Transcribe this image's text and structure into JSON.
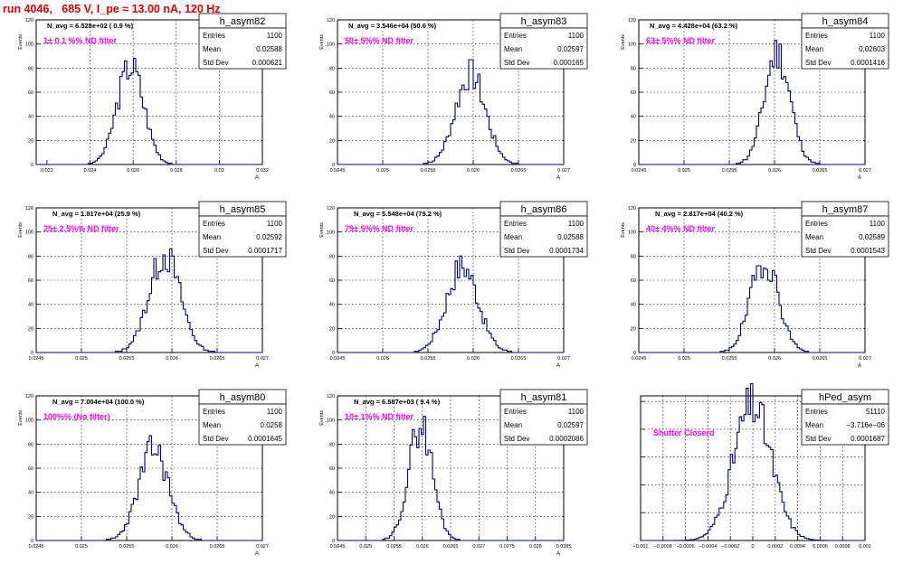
{
  "run_title": "run 4046,   685 V, I_pe ≈ 13.00 nA, 120 Hz",
  "colors": {
    "histogram": "#000080",
    "annotation": "#ff00ff",
    "title_text": "#e00000",
    "grid": "#000000"
  },
  "stat_labels": {
    "entries": "Entries",
    "mean": "Mean",
    "stddev": "Std Dev"
  },
  "axis_labels": {
    "y": "Events",
    "x": "A_{up}"
  },
  "chart_data": [
    {
      "type": "bar",
      "name": "h_asym82",
      "navg": "N_avg = 6.528e+02 ( 0.9 %)",
      "note": "1± 0.1 %% ND filter",
      "entries": "1100",
      "mean": "0.02588",
      "stddev": "0.000621",
      "xlim": [
        0.0215,
        0.032
      ],
      "ylim": [
        0,
        120
      ],
      "xticks": [
        "0.022",
        "0.024",
        "0.026",
        "0.028",
        "0.03",
        "0.032"
      ],
      "xtickvals": [
        0.022,
        0.024,
        0.026,
        0.028,
        0.03,
        0.032
      ],
      "yticks": [
        0,
        20,
        40,
        60,
        80,
        100,
        120
      ],
      "xlabel": "A_{up}",
      "ylabel": "Events",
      "dist": {
        "mu": 0.02588,
        "sigma": 0.000621,
        "peak": 82,
        "seed": 3
      }
    },
    {
      "type": "bar",
      "name": "h_asym83",
      "navg": "N_avg = 3.546e+04 (50.6 %)",
      "note": "50± 5%% ND filter",
      "entries": "1100",
      "mean": "0.02597",
      "stddev": "0.000165",
      "xlim": [
        0.0245,
        0.027
      ],
      "ylim": [
        0,
        120
      ],
      "xticks": [
        "0.0245",
        "0.025",
        "0.0255",
        "0.026",
        "0.0265",
        "0.027"
      ],
      "xtickvals": [
        0.0245,
        0.025,
        0.0255,
        0.026,
        0.0265,
        0.027
      ],
      "yticks": [
        0,
        20,
        40,
        60,
        80,
        100,
        120
      ],
      "xlabel": "A_{up}",
      "ylabel": "Events",
      "dist": {
        "mu": 0.02597,
        "sigma": 0.000165,
        "peak": 75,
        "seed": 7
      }
    },
    {
      "type": "bar",
      "name": "h_asym84",
      "navg": "N_avg = 4.428e+04 (63.2 %)",
      "note": "63± 5%% ND filter",
      "entries": "1100",
      "mean": "0.02603",
      "stddev": "0.0001416",
      "xlim": [
        0.0245,
        0.027
      ],
      "ylim": [
        0,
        120
      ],
      "xticks": [
        "0.0245",
        "0.025",
        "0.0255",
        "0.026",
        "0.0265",
        "0.027"
      ],
      "xtickvals": [
        0.0245,
        0.025,
        0.0255,
        0.026,
        0.0265,
        0.027
      ],
      "yticks": [
        0,
        20,
        40,
        60,
        80,
        100,
        120
      ],
      "xlabel": "A_{up}",
      "ylabel": "Events",
      "dist": {
        "mu": 0.02603,
        "sigma": 0.0001416,
        "peak": 93,
        "seed": 11
      }
    },
    {
      "type": "bar",
      "name": "h_asym85",
      "navg": "N_avg = 1.817e+04 (25.9 %)",
      "note": "25± 2.5%% ND filter",
      "entries": "1100",
      "mean": "0.02592",
      "stddev": "0.0001717",
      "xlim": [
        0.0245,
        0.027
      ],
      "ylim": [
        0,
        120
      ],
      "xticks": [
        "0.0245",
        "0.025",
        "0.0255",
        "0.026",
        "0.0265",
        "0.027"
      ],
      "xtickvals": [
        0.0245,
        0.025,
        0.0255,
        0.026,
        0.0265,
        0.027
      ],
      "yticks": [
        0,
        20,
        40,
        60,
        80,
        100,
        120
      ],
      "xlabel": "A_{up}",
      "ylabel": "Events",
      "dist": {
        "mu": 0.02592,
        "sigma": 0.0001717,
        "peak": 81,
        "seed": 13
      }
    },
    {
      "type": "bar",
      "name": "h_asym86",
      "navg": "N_avg = 5.548e+04 (79.2 %)",
      "note": "79± 5%% ND filter",
      "entries": "1100",
      "mean": "0.02588",
      "stddev": "0.0001734",
      "xlim": [
        0.0245,
        0.027
      ],
      "ylim": [
        0,
        120
      ],
      "xticks": [
        "0.0245",
        "0.025",
        "0.0255",
        "0.026",
        "0.0265",
        "0.027"
      ],
      "xtickvals": [
        0.0245,
        0.025,
        0.0255,
        0.026,
        0.0265,
        0.027
      ],
      "yticks": [
        0,
        20,
        40,
        60,
        80,
        100,
        120
      ],
      "xlabel": "A_{up}",
      "ylabel": "Events",
      "dist": {
        "mu": 0.02588,
        "sigma": 0.0001734,
        "peak": 72,
        "seed": 17
      }
    },
    {
      "type": "bar",
      "name": "h_asym87",
      "navg": "N_avg = 2.817e+04 (40.2 %)",
      "note": "40± 4%% ND filter",
      "entries": "1100",
      "mean": "0.02589",
      "stddev": "0.0001543",
      "xlim": [
        0.0245,
        0.027
      ],
      "ylim": [
        0,
        120
      ],
      "xticks": [
        "0.0245",
        "0.025",
        "0.0255",
        "0.026",
        "0.0265",
        "0.027"
      ],
      "xtickvals": [
        0.0245,
        0.025,
        0.0255,
        0.026,
        0.0265,
        0.027
      ],
      "yticks": [
        0,
        20,
        40,
        60,
        80,
        100,
        120
      ],
      "xlabel": "A_{up}",
      "ylabel": "Events",
      "dist": {
        "mu": 0.02589,
        "sigma": 0.0001543,
        "peak": 77,
        "seed": 19
      }
    },
    {
      "type": "bar",
      "name": "h_asym80",
      "navg": "N_avg = 7.004e+04 (100.0 %)",
      "note": "100%% (No filter)",
      "entries": "1100",
      "mean": "0.0258",
      "stddev": "0.0001645",
      "xlim": [
        0.0245,
        0.027
      ],
      "ylim": [
        0,
        120
      ],
      "xticks": [
        "0.0245",
        "0.025",
        "0.0255",
        "0.026",
        "0.0265",
        "0.027"
      ],
      "xtickvals": [
        0.0245,
        0.025,
        0.0255,
        0.026,
        0.0265,
        0.027
      ],
      "yticks": [
        0,
        20,
        40,
        60,
        80,
        100,
        120
      ],
      "xlabel": "A_{up}",
      "ylabel": "Events",
      "dist": {
        "mu": 0.0258,
        "sigma": 0.0001645,
        "peak": 76,
        "seed": 23
      }
    },
    {
      "type": "bar",
      "name": "h_asym81",
      "navg": "N_avg = 6.587e+03 ( 9.4 %)",
      "note": "10± 1%% ND filter",
      "entries": "1100",
      "mean": "0.02597",
      "stddev": "0.0002086",
      "xlim": [
        0.0245,
        0.0285
      ],
      "ylim": [
        0,
        120
      ],
      "xticks": [
        "0.0245",
        "0.025",
        "0.0255",
        "0.026",
        "0.0265",
        "0.027",
        "0.0275",
        "0.028",
        "0.0285"
      ],
      "xtickvals": [
        0.0245,
        0.025,
        0.0255,
        0.026,
        0.0265,
        0.027,
        0.0275,
        0.028,
        0.0285
      ],
      "yticks": [
        0,
        20,
        40,
        60,
        80,
        100,
        120
      ],
      "xlabel": "A_{up}",
      "ylabel": "Events",
      "dist": {
        "mu": 0.02597,
        "sigma": 0.0002086,
        "peak": 97,
        "seed": 29
      }
    },
    {
      "type": "bar",
      "name": "hPed_asym",
      "navg": "",
      "note": "Shutter Closerd",
      "entries": "51110",
      "mean": "−3.716e−06",
      "stddev": "0.0001687",
      "xlim": [
        -0.001,
        0.001
      ],
      "ylim": [
        0,
        2600
      ],
      "xticks": [
        "−0.001",
        "−0.0008",
        "−0.0006",
        "−0.0004",
        "−0.0002",
        "0",
        "0.0002",
        "0.0004",
        "0.0006",
        "0.0008",
        "0.001"
      ],
      "xtickvals": [
        -0.001,
        -0.0008,
        -0.0006,
        -0.0004,
        -0.0002,
        0,
        0.0002,
        0.0004,
        0.0006,
        0.0008,
        0.001
      ],
      "yticks": [],
      "xlabel": "",
      "ylabel": "",
      "dist": {
        "mu": -3.7e-06,
        "sigma": 0.0001687,
        "peak": 2430,
        "seed": 31
      }
    }
  ]
}
